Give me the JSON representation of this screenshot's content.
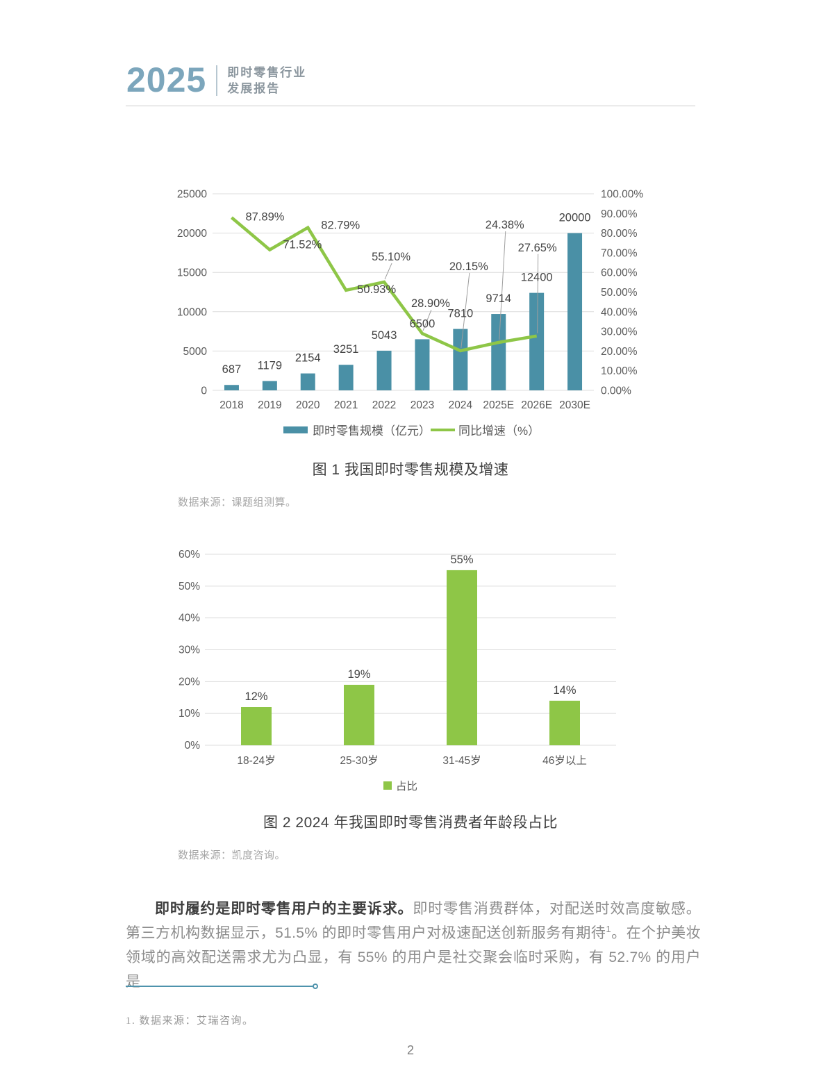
{
  "header": {
    "year": "2025",
    "title_line1": "即时零售行业",
    "title_line2": "发展报告"
  },
  "figures": [
    {
      "caption": "图 1 我国即时零售规模及增速",
      "source": "数据来源：课题组测算。"
    },
    {
      "caption": "图 2 2024 年我国即时零售消费者年龄段占比",
      "source": "数据来源：凯度咨询。"
    }
  ],
  "chart_data": [
    {
      "type": "bar",
      "subtype": "combo_bar_line",
      "title": "图 1 我国即时零售规模及增速",
      "categories": [
        "2018",
        "2019",
        "2020",
        "2021",
        "2022",
        "2023",
        "2024",
        "2025E",
        "2026E",
        "2030E"
      ],
      "series": [
        {
          "name": "即时零售规模（亿元）",
          "type": "bar",
          "values": [
            687,
            1179,
            2154,
            3251,
            5043,
            6500,
            7810,
            9714,
            12400,
            20000
          ],
          "color": "#4A90A6"
        },
        {
          "name": "同比增速（%）",
          "type": "line",
          "values": [
            87.89,
            71.52,
            82.79,
            50.93,
            55.1,
            28.9,
            20.15,
            24.38,
            27.65,
            null
          ],
          "point_labels": [
            "87.89%",
            "71.52%",
            "82.79%",
            "50.93%",
            "55.10%",
            "28.90%",
            "20.15%",
            "24.38%",
            "27.65%"
          ],
          "color": "#8EC647"
        }
      ],
      "left_axis": {
        "min": 0,
        "max": 25000,
        "step": 5000,
        "ticks": [
          "0",
          "5000",
          "10000",
          "15000",
          "20000",
          "25000"
        ]
      },
      "right_axis": {
        "min": 0,
        "max": 100,
        "step": 10,
        "ticks": [
          "0.00%",
          "10.00%",
          "20.00%",
          "30.00%",
          "40.00%",
          "50.00%",
          "60.00%",
          "70.00%",
          "80.00%",
          "90.00%",
          "100.00%"
        ]
      },
      "grid": true,
      "legend_position": "bottom"
    },
    {
      "type": "bar",
      "title": "图 2 2024 年我国即时零售消费者年龄段占比",
      "categories": [
        "18-24岁",
        "25-30岁",
        "31-45岁",
        "46岁以上"
      ],
      "values": [
        12,
        19,
        55,
        14
      ],
      "point_labels": [
        "12%",
        "19%",
        "55%",
        "14%"
      ],
      "legend": [
        "占比"
      ],
      "y_axis": {
        "min": 0,
        "max": 60,
        "step": 10,
        "ticks": [
          "0%",
          "10%",
          "20%",
          "30%",
          "40%",
          "50%",
          "60%"
        ]
      },
      "color": "#8EC647",
      "grid": true,
      "legend_position": "bottom"
    }
  ],
  "paragraph": {
    "lead_bold": "即时履约是即时零售用户的主要诉求。",
    "part1": "即时零售消费群体，对配送时效高度敏感。第三方机构数据显示，51.5% 的即时零售用户对极速配送创新服务有期待",
    "superscript": "1",
    "part2": "。在个护美妆领域的高效配送需求尤为凸显，有 55% 的用户是社交聚会临时采购，有 52.7% 的用户是"
  },
  "footnote": {
    "text": "1. 数据来源：艾瑞咨询。"
  },
  "page_number": "2",
  "colors": {
    "bar_teal": "#4A90A6",
    "line_green": "#8EC647",
    "accent_blue": "#7CA6BC",
    "grid_gray": "#DCDCDC",
    "axis_text": "#595959",
    "label_text": "#444444",
    "leader_gray": "#9E9E9E"
  }
}
